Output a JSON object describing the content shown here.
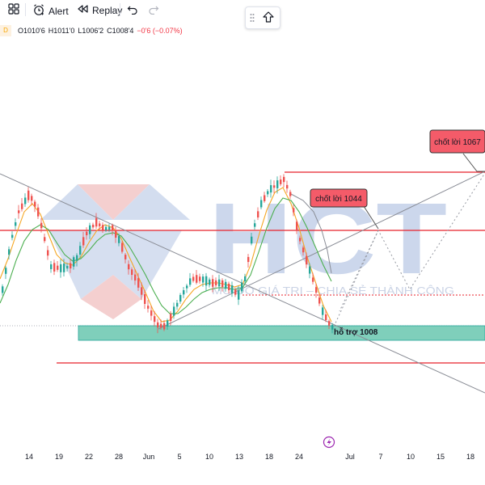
{
  "toolbar": {
    "alert_label": "Alert",
    "replay_label": "Replay",
    "icons": [
      "layout-grid-icon",
      "alarm-clock-icon",
      "replay-rewind-icon",
      "undo-icon",
      "redo-icon"
    ]
  },
  "float_button": {
    "icons": [
      "drag-handle-icon",
      "arrow-up-icon"
    ]
  },
  "legend": {
    "interval_badge": "D",
    "open": "O1010'6",
    "high": "H1011'0",
    "low": "L1006'2",
    "close": "C1008'4",
    "change": "−0'6 (−0.07%)"
  },
  "watermark": {
    "logo": "HCT",
    "slogan": "MỐ ĐO GIÁ TRỊ – CHIA SẺ THÀNH CÔNG"
  },
  "annotations": {
    "target_1067": "chốt lời 1067",
    "target_1044": "chốt lời 1044",
    "support_1008": "hỗ trợ 1008"
  },
  "x_axis": {
    "labels": [
      "14",
      "19",
      "22",
      "28",
      "Jun",
      "5",
      "10",
      "13",
      "18",
      "24",
      "Jul",
      "7",
      "10",
      "15",
      "18"
    ]
  },
  "event_marker_icon": "lightning-icon",
  "colors": {
    "up_candle": "#26a69a",
    "down_candle": "#ef5350",
    "resistance_line": "#e8212b",
    "support_zone": "#7fcfbb",
    "label_box": "#f45b69",
    "event_marker": "#9c27b0",
    "watermark_blue": "#c7d3ea",
    "watermark_red": "#f3caca"
  }
}
